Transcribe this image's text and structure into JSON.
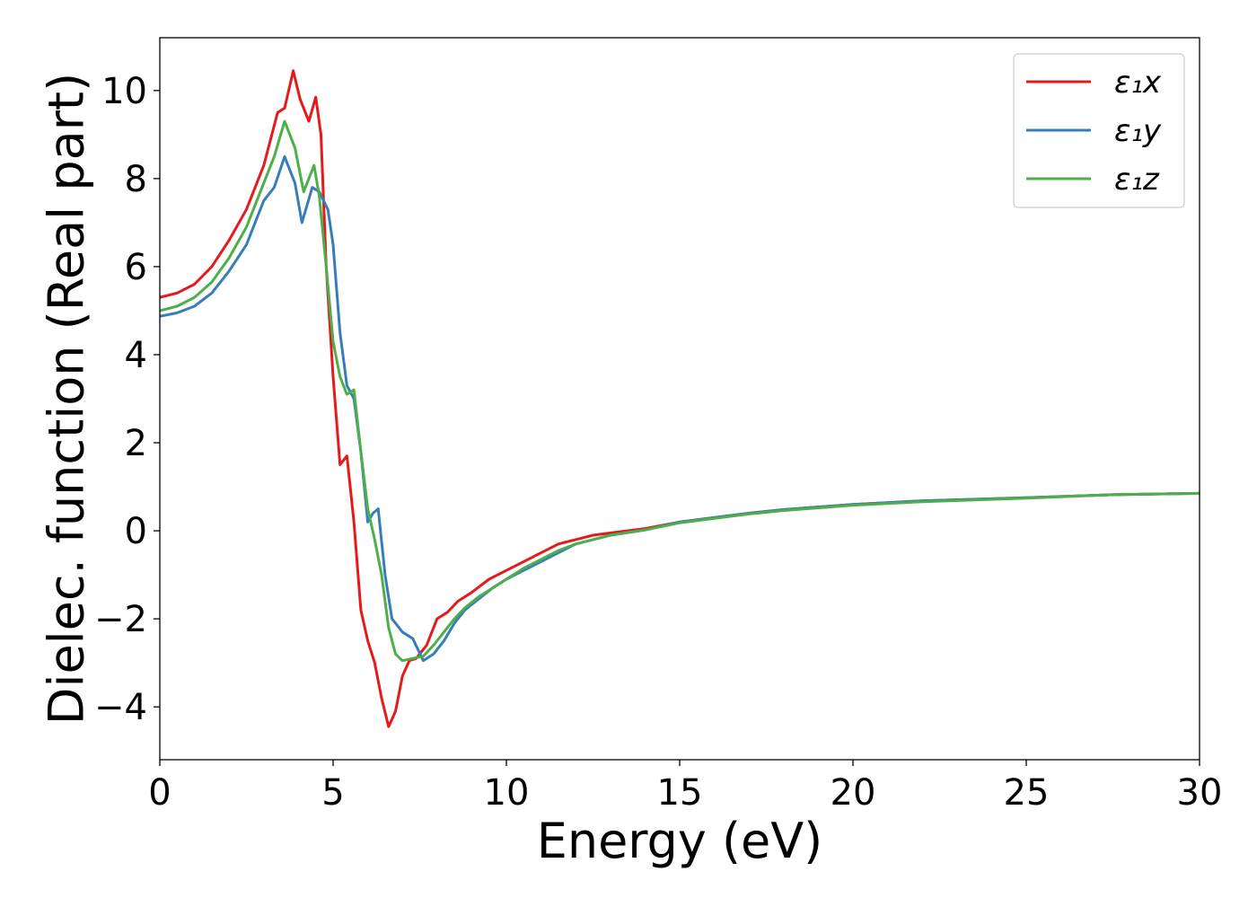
{
  "chart_data": {
    "type": "line",
    "xlabel": "Energy (eV)",
    "ylabel": "Dielec. function (Real part)",
    "xlim": [
      0,
      30
    ],
    "ylim": [
      -5.2,
      11.2
    ],
    "xticks": [
      0,
      5,
      10,
      15,
      20,
      25,
      30
    ],
    "yticks": [
      -4,
      -2,
      0,
      2,
      4,
      6,
      8,
      10
    ],
    "ytick_labels": [
      "−4",
      "−2",
      "0",
      "2",
      "4",
      "6",
      "8",
      "10"
    ],
    "grid": false,
    "legend_position": "top-right",
    "series": [
      {
        "name": "ε₁x",
        "color": "#e41a1c",
        "x": [
          0,
          0.5,
          1,
          1.5,
          2,
          2.5,
          3,
          3.2,
          3.4,
          3.6,
          3.85,
          4.05,
          4.3,
          4.5,
          4.65,
          4.8,
          5,
          5.2,
          5.4,
          5.6,
          5.8,
          6,
          6.2,
          6.4,
          6.6,
          6.8,
          7,
          7.2,
          7.4,
          7.7,
          8,
          8.3,
          8.6,
          9,
          9.5,
          10,
          10.5,
          11,
          11.5,
          12,
          12.5,
          13,
          14,
          15,
          16,
          17,
          18,
          20,
          22,
          25,
          27.5,
          30
        ],
        "y": [
          5.3,
          5.4,
          5.6,
          6.0,
          6.6,
          7.3,
          8.3,
          8.9,
          9.5,
          9.6,
          10.45,
          9.8,
          9.3,
          9.85,
          9.0,
          6.0,
          3.5,
          1.5,
          1.7,
          0.2,
          -1.8,
          -2.5,
          -3.0,
          -3.8,
          -4.45,
          -4.1,
          -3.3,
          -2.95,
          -2.9,
          -2.6,
          -2.0,
          -1.85,
          -1.6,
          -1.4,
          -1.1,
          -0.9,
          -0.7,
          -0.5,
          -0.3,
          -0.2,
          -0.1,
          -0.05,
          0.05,
          0.2,
          0.3,
          0.4,
          0.48,
          0.6,
          0.68,
          0.75,
          0.82,
          0.85
        ]
      },
      {
        "name": "ε₁y",
        "color": "#377eb8",
        "x": [
          0,
          0.5,
          1,
          1.5,
          2,
          2.5,
          3,
          3.3,
          3.6,
          3.9,
          4.1,
          4.4,
          4.6,
          4.85,
          5,
          5.2,
          5.4,
          5.6,
          5.8,
          6,
          6.15,
          6.3,
          6.5,
          6.7,
          7,
          7.3,
          7.6,
          7.9,
          8.2,
          8.5,
          8.8,
          9.2,
          9.6,
          10,
          10.5,
          11,
          11.5,
          12,
          12.5,
          13,
          14,
          15,
          16,
          17,
          18,
          20,
          22,
          25,
          27.5,
          30
        ],
        "y": [
          4.87,
          4.95,
          5.1,
          5.4,
          5.9,
          6.5,
          7.5,
          7.8,
          8.5,
          7.9,
          7.0,
          7.8,
          7.7,
          7.3,
          6.5,
          4.5,
          3.3,
          3.0,
          1.8,
          0.2,
          0.4,
          0.5,
          -1.0,
          -2.0,
          -2.3,
          -2.45,
          -2.95,
          -2.8,
          -2.5,
          -2.1,
          -1.8,
          -1.55,
          -1.3,
          -1.1,
          -0.9,
          -0.7,
          -0.5,
          -0.3,
          -0.2,
          -0.1,
          0.02,
          0.2,
          0.3,
          0.4,
          0.48,
          0.6,
          0.68,
          0.75,
          0.82,
          0.85
        ]
      },
      {
        "name": "ε₁z",
        "color": "#4daf4a",
        "x": [
          0,
          0.5,
          1,
          1.5,
          2,
          2.5,
          3,
          3.3,
          3.6,
          3.9,
          4.15,
          4.45,
          4.6,
          4.8,
          5,
          5.2,
          5.4,
          5.6,
          5.8,
          6,
          6.2,
          6.4,
          6.6,
          6.8,
          7,
          7.3,
          7.6,
          7.9,
          8.2,
          8.5,
          8.8,
          9.2,
          9.6,
          10,
          10.5,
          11,
          11.5,
          12,
          12.5,
          13,
          14,
          15,
          16,
          17,
          18,
          20,
          22,
          25,
          27.5,
          30
        ],
        "y": [
          5.0,
          5.1,
          5.3,
          5.65,
          6.2,
          6.9,
          7.9,
          8.5,
          9.3,
          8.7,
          7.7,
          8.3,
          7.6,
          6.0,
          4.3,
          3.5,
          3.1,
          3.2,
          1.8,
          0.5,
          -0.2,
          -1.0,
          -2.2,
          -2.8,
          -2.95,
          -2.9,
          -2.85,
          -2.6,
          -2.3,
          -2.0,
          -1.75,
          -1.5,
          -1.3,
          -1.1,
          -0.85,
          -0.65,
          -0.45,
          -0.3,
          -0.2,
          -0.1,
          0.02,
          0.18,
          0.28,
          0.38,
          0.46,
          0.58,
          0.66,
          0.74,
          0.82,
          0.85
        ]
      }
    ]
  }
}
